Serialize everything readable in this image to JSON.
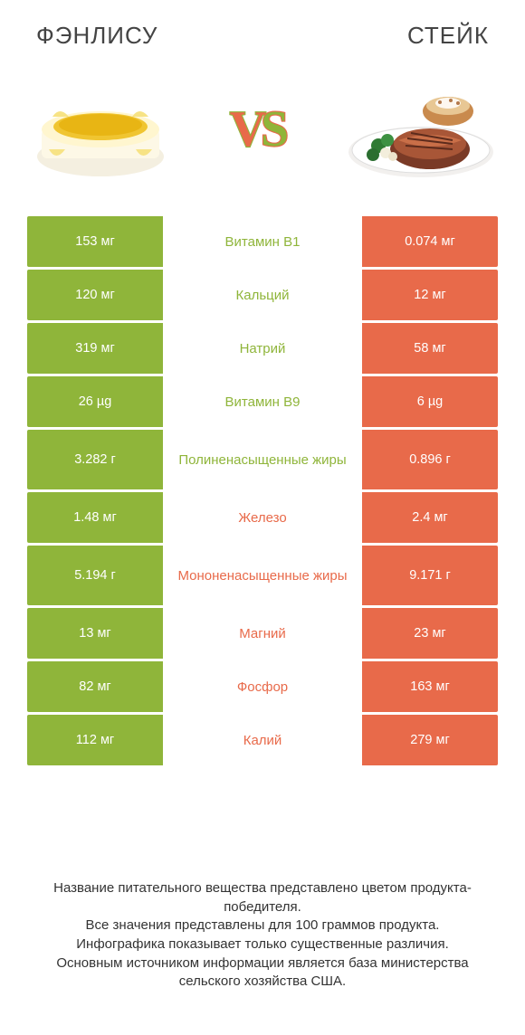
{
  "colors": {
    "left_bg": "#8fb53a",
    "left_text": "#ffffff",
    "right_bg": "#e86a4a",
    "right_text": "#ffffff",
    "mid_bg": "#ffffff",
    "mid_text_left": "#8fb53a",
    "mid_text_right": "#e86a4a",
    "mid_text_neutral": "#8fb53a",
    "title_color": "#444444",
    "page_bg": "#ffffff"
  },
  "header": {
    "left_title": "ФЭНЛИСУ",
    "right_title": "СТЕЙК"
  },
  "vs": {
    "label": "VS"
  },
  "images": {
    "left_alt": "cake-with-pineapple",
    "right_alt": "steak-plate"
  },
  "rows": [
    {
      "left": "153 мг",
      "mid": "Витамин B1",
      "right": "0.074 мг",
      "winner": "left",
      "tall": false
    },
    {
      "left": "120 мг",
      "mid": "Кальций",
      "right": "12 мг",
      "winner": "left",
      "tall": false
    },
    {
      "left": "319 мг",
      "mid": "Натрий",
      "right": "58 мг",
      "winner": "left",
      "tall": false
    },
    {
      "left": "26 µg",
      "mid": "Витамин B9",
      "right": "6 µg",
      "winner": "left",
      "tall": false
    },
    {
      "left": "3.282 г",
      "mid": "Полиненасыщенные жиры",
      "right": "0.896 г",
      "winner": "left",
      "tall": true
    },
    {
      "left": "1.48 мг",
      "mid": "Железо",
      "right": "2.4 мг",
      "winner": "right",
      "tall": false
    },
    {
      "left": "5.194 г",
      "mid": "Мононенасыщенные жиры",
      "right": "9.171 г",
      "winner": "right",
      "tall": true
    },
    {
      "left": "13 мг",
      "mid": "Магний",
      "right": "23 мг",
      "winner": "right",
      "tall": false
    },
    {
      "left": "82 мг",
      "mid": "Фосфор",
      "right": "163 мг",
      "winner": "right",
      "tall": false
    },
    {
      "left": "112 мг",
      "mid": "Калий",
      "right": "279 мг",
      "winner": "right",
      "tall": false
    }
  ],
  "footer": {
    "line1": "Название питательного вещества представлено цветом продукта-победителя.",
    "line2": "Все значения представлены для 100 граммов продукта.",
    "line3": "Инфографика показывает только существенные различия.",
    "line4": "Основным источником информации является база министерства сельского хозяйства США."
  }
}
